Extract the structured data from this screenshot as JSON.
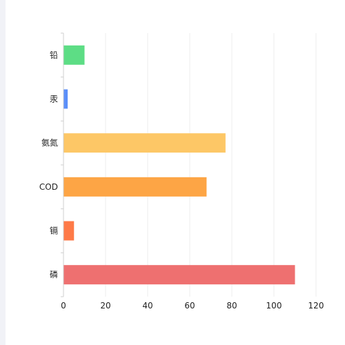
{
  "colors": {
    "background": "#ffffff",
    "grid": "#eeeeee",
    "axis": "#cfcfcf",
    "left_strip": "#f1f2f7"
  },
  "chart_data": {
    "type": "bar",
    "orientation": "horizontal",
    "title": "",
    "xlabel": "",
    "ylabel": "",
    "categories": [
      "铅",
      "汞",
      "氨氮",
      "COD",
      "镉",
      "磷"
    ],
    "values": [
      10,
      2,
      77,
      68,
      5,
      110
    ],
    "bar_colors": [
      "#5ddd85",
      "#5b8ff9",
      "#fdc766",
      "#fda545",
      "#fe7a48",
      "#ee7070"
    ],
    "xlim": [
      0,
      120
    ],
    "xticks": [
      0,
      20,
      40,
      60,
      80,
      100,
      120
    ],
    "grid": "vertical",
    "legend": "none"
  }
}
